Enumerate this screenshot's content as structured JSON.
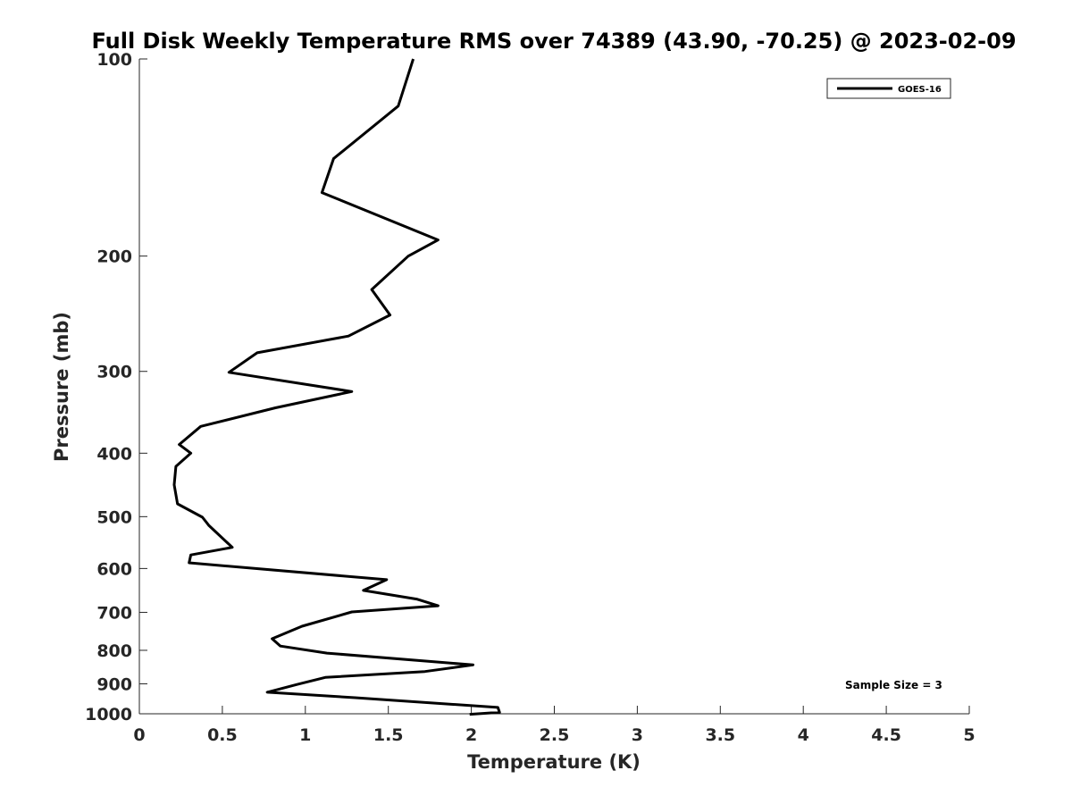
{
  "chart_data": {
    "type": "line",
    "title": "Full Disk Weekly Temperature RMS over 74389 (43.90, -70.25) @ 2023-02-09",
    "xlabel": "Temperature (K)",
    "ylabel": "Pressure (mb)",
    "xlim": [
      0,
      5
    ],
    "ylim": [
      1000,
      100
    ],
    "y_scale": "log",
    "y_reversed": true,
    "grid": false,
    "legend_position": "top-right",
    "x_ticks": [
      "0",
      "0.5",
      "1",
      "1.5",
      "2",
      "2.5",
      "3",
      "3.5",
      "4",
      "4.5",
      "5"
    ],
    "y_ticks": [
      "100",
      "200",
      "300",
      "400",
      "500",
      "600",
      "700",
      "800",
      "900",
      "1000"
    ],
    "line_color": "#000000",
    "series": [
      {
        "name": "GOES-16",
        "x": [
          1.65,
          1.56,
          1.17,
          1.1,
          1.8,
          1.62,
          1.4,
          1.51,
          1.26,
          0.71,
          0.54,
          1.28,
          0.82,
          0.37,
          0.24,
          0.31,
          0.22,
          0.21,
          0.23,
          0.38,
          0.42,
          0.56,
          0.31,
          0.3,
          1.49,
          1.35,
          1.67,
          1.8,
          1.28,
          0.98,
          0.8,
          0.85,
          1.13,
          2.01,
          1.72,
          1.12,
          0.95,
          0.77,
          1.3,
          2.16,
          2.17,
          1.99
        ],
        "y": [
          100,
          118,
          142,
          160,
          189,
          200,
          225,
          246,
          265,
          281,
          301,
          322,
          341,
          364,
          388,
          400,
          419,
          447,
          478,
          501,
          516,
          557,
          572,
          588,
          624,
          648,
          668,
          684,
          699,
          735,
          768,
          788,
          808,
          842,
          862,
          880,
          902,
          927,
          945,
          978,
          995,
          1002
        ]
      }
    ],
    "annotation": "Sample Size = 3"
  }
}
